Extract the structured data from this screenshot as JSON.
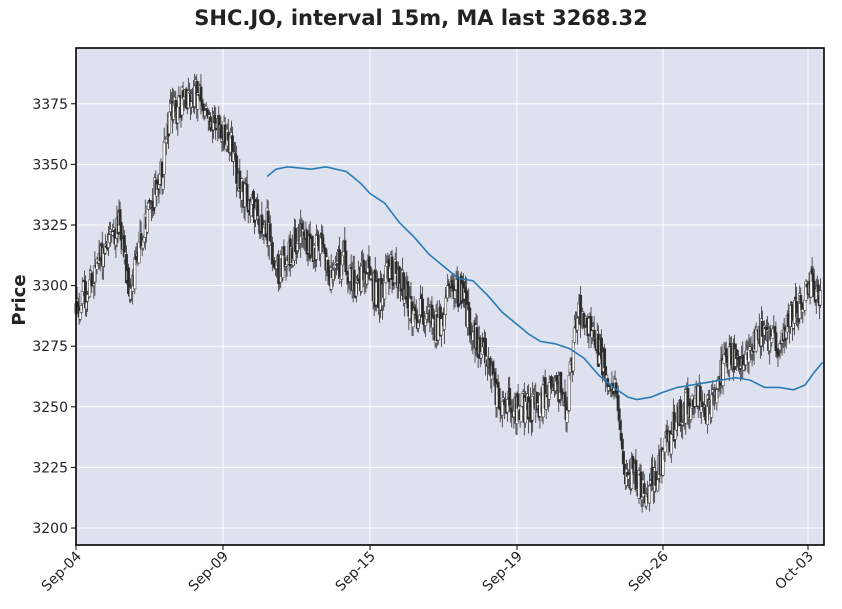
{
  "chart_data": {
    "type": "candlestick",
    "title": "SHC.JO, interval 15m, MA last 3268.32",
    "ylabel": "Price",
    "xlabel": "",
    "ylim": [
      3193,
      3398
    ],
    "yticks": [
      3200,
      3225,
      3250,
      3275,
      3300,
      3325,
      3350,
      3375
    ],
    "xticks": [
      {
        "label": "Sep-04",
        "x": 0
      },
      {
        "label": "Sep-09",
        "x": 5
      },
      {
        "label": "Sep-15",
        "x": 10
      },
      {
        "label": "Sep-19",
        "x": 15
      },
      {
        "label": "Sep-26",
        "x": 20
      },
      {
        "label": "Oct-03",
        "x": 25
      }
    ],
    "xlim": [
      0,
      25.5
    ],
    "grid": true,
    "colors": {
      "panel_bg": "#dde2ee",
      "grid": "#ffffff",
      "up": "#ffffff",
      "down": "#2a2a2a",
      "wick": "#333333",
      "ma": "#2a7ab8"
    },
    "anchors": [
      [
        0,
        3290
      ],
      [
        0.5,
        3300
      ],
      [
        1,
        3318
      ],
      [
        1.5,
        3325
      ],
      [
        1.8,
        3295
      ],
      [
        2.2,
        3318
      ],
      [
        2.6,
        3335
      ],
      [
        2.9,
        3345
      ],
      [
        3.2,
        3370
      ],
      [
        3.6,
        3375
      ],
      [
        4.0,
        3380
      ],
      [
        4.4,
        3372
      ],
      [
        4.8,
        3365
      ],
      [
        5.2,
        3362
      ],
      [
        5.5,
        3345
      ],
      [
        5.8,
        3335
      ],
      [
        6.1,
        3330
      ],
      [
        6.5,
        3325
      ],
      [
        6.8,
        3305
      ],
      [
        7.2,
        3313
      ],
      [
        7.6,
        3320
      ],
      [
        7.9,
        3318
      ],
      [
        8.3,
        3315
      ],
      [
        8.7,
        3305
      ],
      [
        9.1,
        3312
      ],
      [
        9.5,
        3300
      ],
      [
        9.9,
        3306
      ],
      [
        10.3,
        3295
      ],
      [
        10.7,
        3308
      ],
      [
        11.1,
        3300
      ],
      [
        11.5,
        3285
      ],
      [
        11.9,
        3290
      ],
      [
        12.3,
        3282
      ],
      [
        12.7,
        3295
      ],
      [
        13.1,
        3298
      ],
      [
        13.5,
        3280
      ],
      [
        13.9,
        3270
      ],
      [
        14.3,
        3255
      ],
      [
        14.7,
        3250
      ],
      [
        15.1,
        3250
      ],
      [
        15.5,
        3248
      ],
      [
        15.9,
        3255
      ],
      [
        16.3,
        3262
      ],
      [
        16.7,
        3250
      ],
      [
        17.1,
        3290
      ],
      [
        17.5,
        3282
      ],
      [
        17.9,
        3270
      ],
      [
        18.3,
        3260
      ],
      [
        18.7,
        3225
      ],
      [
        19.1,
        3220
      ],
      [
        19.5,
        3216
      ],
      [
        19.9,
        3225
      ],
      [
        20.3,
        3240
      ],
      [
        20.7,
        3250
      ],
      [
        21.1,
        3255
      ],
      [
        21.5,
        3248
      ],
      [
        21.9,
        3262
      ],
      [
        22.3,
        3270
      ],
      [
        22.7,
        3272
      ],
      [
        23.1,
        3278
      ],
      [
        23.5,
        3282
      ],
      [
        23.9,
        3275
      ],
      [
        24.3,
        3285
      ],
      [
        24.7,
        3290
      ],
      [
        25.0,
        3303
      ],
      [
        25.5,
        3295
      ]
    ],
    "candles_per_unit": 28,
    "ma_label": "MA last 3268.32",
    "ma_points": [
      [
        6.5,
        3345
      ],
      [
        6.8,
        3348
      ],
      [
        7.2,
        3349
      ],
      [
        8.0,
        3348
      ],
      [
        8.5,
        3349
      ],
      [
        9.2,
        3347
      ],
      [
        9.7,
        3342
      ],
      [
        10.0,
        3338
      ],
      [
        10.5,
        3334
      ],
      [
        11.0,
        3326
      ],
      [
        11.5,
        3320
      ],
      [
        12.0,
        3313
      ],
      [
        12.5,
        3308
      ],
      [
        13.0,
        3303
      ],
      [
        13.5,
        3302
      ],
      [
        14.0,
        3296
      ],
      [
        14.5,
        3289
      ],
      [
        15.0,
        3284
      ],
      [
        15.4,
        3280
      ],
      [
        15.8,
        3277
      ],
      [
        16.3,
        3276
      ],
      [
        16.8,
        3274
      ],
      [
        17.3,
        3270
      ],
      [
        17.8,
        3263
      ],
      [
        18.3,
        3258
      ],
      [
        18.8,
        3254
      ],
      [
        19.1,
        3253
      ],
      [
        19.6,
        3254
      ],
      [
        20.0,
        3256
      ],
      [
        20.5,
        3258
      ],
      [
        21.0,
        3259
      ],
      [
        21.5,
        3260
      ],
      [
        22.0,
        3261
      ],
      [
        22.5,
        3262
      ],
      [
        23.0,
        3261
      ],
      [
        23.5,
        3258
      ],
      [
        24.0,
        3258
      ],
      [
        24.5,
        3257
      ],
      [
        24.9,
        3259
      ],
      [
        25.2,
        3264
      ],
      [
        25.5,
        3268.32
      ]
    ]
  }
}
